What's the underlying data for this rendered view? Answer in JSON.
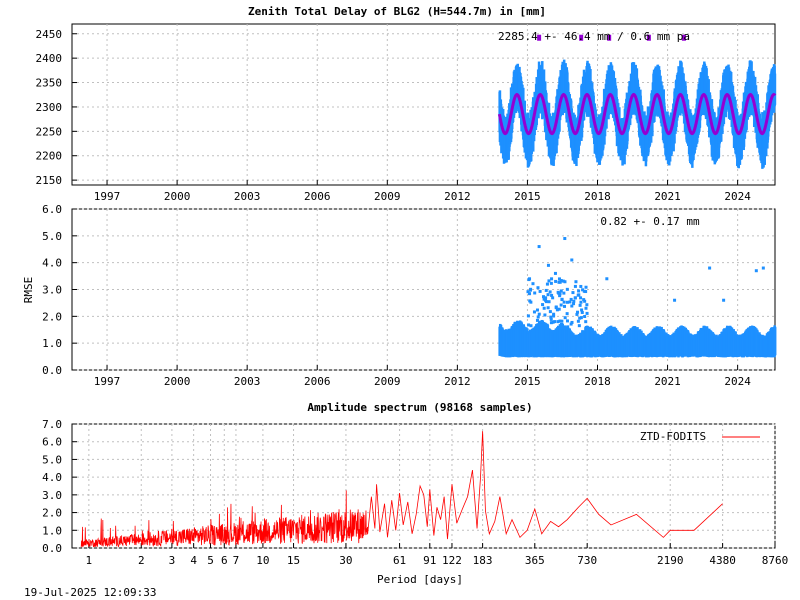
{
  "chart_data": [
    {
      "type": "scatter",
      "title": "Zenith Total Delay of BLG2 (H=544.7m) in [mm]",
      "xlabel": "",
      "ylabel": "",
      "xlim": [
        1995.5,
        2025.6
      ],
      "ylim": [
        2140,
        2470
      ],
      "x_ticks": [
        1997,
        2000,
        2003,
        2006,
        2009,
        2012,
        2015,
        2018,
        2021,
        2024
      ],
      "y_ticks": [
        2150,
        2200,
        2250,
        2300,
        2350,
        2400,
        2450
      ],
      "annotation": "2285.4 +-  46.4 mm /  0.6 mm pa",
      "series": [
        {
          "name": "ZTD",
          "color": "#1e90ff",
          "x_range": [
            2013.8,
            2025.6
          ],
          "mean": 2285.4,
          "annual_amplitude": 55,
          "scatter": 40
        },
        {
          "name": "Model fit",
          "color": "#9400d3",
          "mean": 2285.4,
          "annual_amplitude": 40,
          "trend_mm_per_year": 0.6
        }
      ]
    },
    {
      "type": "scatter",
      "title": "",
      "xlabel": "",
      "ylabel": "RMSE",
      "xlim": [
        1995.5,
        2025.6
      ],
      "ylim": [
        0.0,
        6.0
      ],
      "x_ticks": [
        1997,
        2000,
        2003,
        2006,
        2009,
        2012,
        2015,
        2018,
        2021,
        2024
      ],
      "y_ticks": [
        "0.0",
        "1.0",
        "2.0",
        "3.0",
        "4.0",
        "5.0",
        "6.0"
      ],
      "annotation": "0.82 +-  0.17 mm",
      "series": [
        {
          "name": "RMSE",
          "color": "#1e90ff",
          "x_range": [
            2013.8,
            2025.6
          ],
          "mean": 0.82,
          "std": 0.17,
          "outliers": [
            [
              2015.5,
              4.6
            ],
            [
              2015.9,
              3.9
            ],
            [
              2016.2,
              3.6
            ],
            [
              2016.6,
              4.9
            ],
            [
              2016.9,
              4.1
            ],
            [
              2017.2,
              2.8
            ],
            [
              2018.4,
              3.4
            ],
            [
              2021.3,
              2.6
            ],
            [
              2022.8,
              3.8
            ],
            [
              2023.4,
              2.6
            ],
            [
              2024.8,
              3.7
            ],
            [
              2025.1,
              3.8
            ]
          ]
        }
      ]
    },
    {
      "type": "line",
      "title": "Amplitude spectrum (98168 samples)",
      "xlabel": "Period [days]",
      "ylabel": "",
      "xscale": "log",
      "xlim": [
        0.8,
        8760
      ],
      "ylim": [
        0.0,
        7.0
      ],
      "x_ticks": [
        "1",
        "2",
        "3",
        "4",
        "5",
        "6",
        "7",
        "10",
        "15",
        "30",
        "61",
        "91",
        "122",
        "183",
        "365",
        "730",
        "2190",
        "4380",
        "8760"
      ],
      "x_tick_values": [
        1,
        2,
        3,
        4,
        5,
        6,
        7,
        10,
        15,
        30,
        61,
        91,
        122,
        183,
        365,
        730,
        2190,
        4380,
        8760
      ],
      "y_ticks": [
        "0.0",
        "1.0",
        "2.0",
        "3.0",
        "4.0",
        "5.0",
        "6.0",
        "7.0"
      ],
      "legend": "top-right",
      "series": [
        {
          "name": "ZTD-FODITS",
          "color": "#ff0000",
          "peaks": [
            [
              183,
              6.6
            ],
            [
              160,
              4.4
            ],
            [
              122,
              3.6
            ],
            [
              91,
              3.3
            ],
            [
              61,
              3.1
            ],
            [
              45,
              3.6
            ],
            [
              365,
              2.2
            ],
            [
              500,
              1.2
            ],
            [
              650,
              2.3
            ],
            [
              730,
              2.8
            ],
            [
              1000,
              1.3
            ],
            [
              1400,
              1.9
            ],
            [
              2000,
              0.6
            ],
            [
              2190,
              1.0
            ],
            [
              4380,
              2.5
            ]
          ]
        }
      ]
    }
  ],
  "timestamp": "19-Jul-2025 12:09:33"
}
